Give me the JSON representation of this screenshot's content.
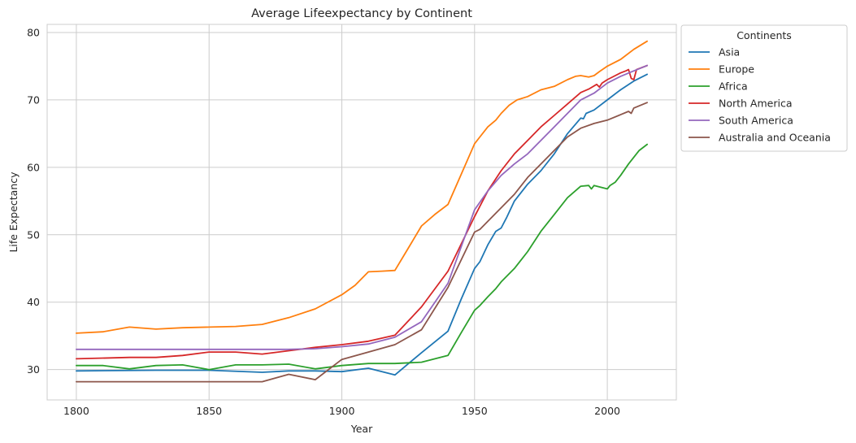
{
  "chart_data": {
    "type": "line",
    "title": "Average Lifeexpectancy by Continent",
    "xlabel": "Year",
    "ylabel": "Life Expectancy",
    "xlim": [
      1789,
      2026
    ],
    "ylim": [
      25.5,
      81.2
    ],
    "xticks": [
      1800,
      1850,
      1900,
      1950,
      2000
    ],
    "yticks": [
      30,
      40,
      50,
      60,
      70,
      80
    ],
    "grid": true,
    "legend": {
      "title": "Continents",
      "position": "outside-top-right"
    },
    "series": [
      {
        "name": "Asia",
        "color": "#1f77b4",
        "x": [
          1800,
          1830,
          1850,
          1870,
          1880,
          1890,
          1900,
          1910,
          1920,
          1930,
          1940,
          1945,
          1950,
          1952,
          1955,
          1958,
          1960,
          1962,
          1965,
          1970,
          1975,
          1980,
          1985,
          1990,
          1991,
          1992,
          1995,
          2000,
          2005,
          2010,
          2015
        ],
        "y": [
          29.8,
          29.9,
          29.9,
          29.6,
          29.8,
          29.8,
          29.7,
          30.2,
          29.2,
          32.5,
          35.7,
          40.5,
          45.0,
          46.0,
          48.5,
          50.5,
          51.0,
          52.5,
          55.0,
          57.5,
          59.5,
          62.0,
          65.0,
          67.3,
          67.2,
          68.0,
          68.5,
          70.0,
          71.5,
          72.8,
          73.8
        ]
      },
      {
        "name": "Europe",
        "color": "#ff7f0e",
        "x": [
          1800,
          1810,
          1820,
          1830,
          1840,
          1850,
          1860,
          1870,
          1880,
          1890,
          1900,
          1905,
          1910,
          1915,
          1920,
          1925,
          1930,
          1935,
          1940,
          1945,
          1950,
          1952,
          1955,
          1958,
          1960,
          1963,
          1966,
          1970,
          1975,
          1980,
          1985,
          1988,
          1990,
          1993,
          1995,
          1997,
          2000,
          2005,
          2010,
          2015
        ],
        "y": [
          35.4,
          35.6,
          36.3,
          36.0,
          36.2,
          36.3,
          36.4,
          36.7,
          37.7,
          39.0,
          41.1,
          42.5,
          44.5,
          44.6,
          44.7,
          48.0,
          51.3,
          53.0,
          54.5,
          59.0,
          63.5,
          64.5,
          66.0,
          67.0,
          68.0,
          69.2,
          70.0,
          70.5,
          71.5,
          72.0,
          73.0,
          73.5,
          73.6,
          73.4,
          73.6,
          74.2,
          75.0,
          76.0,
          77.5,
          78.7
        ]
      },
      {
        "name": "Africa",
        "color": "#2ca02c",
        "x": [
          1800,
          1810,
          1820,
          1830,
          1840,
          1850,
          1860,
          1870,
          1880,
          1890,
          1900,
          1910,
          1920,
          1930,
          1940,
          1945,
          1950,
          1952,
          1955,
          1958,
          1960,
          1965,
          1968,
          1970,
          1975,
          1980,
          1985,
          1990,
          1993,
          1994,
          1995,
          1998,
          2000,
          2001,
          2003,
          2005,
          2008,
          2010,
          2012,
          2015
        ],
        "y": [
          30.6,
          30.6,
          30.1,
          30.6,
          30.7,
          30.0,
          30.7,
          30.7,
          30.8,
          30.1,
          30.6,
          30.9,
          30.9,
          31.1,
          32.1,
          35.5,
          38.8,
          39.5,
          40.8,
          42.0,
          43.0,
          45.0,
          46.5,
          47.5,
          50.5,
          53.0,
          55.5,
          57.2,
          57.3,
          56.8,
          57.3,
          57.0,
          56.8,
          57.3,
          57.8,
          58.8,
          60.5,
          61.5,
          62.5,
          63.4
        ]
      },
      {
        "name": "North America",
        "color": "#d62728",
        "x": [
          1800,
          1820,
          1830,
          1840,
          1850,
          1860,
          1870,
          1880,
          1890,
          1900,
          1910,
          1920,
          1930,
          1940,
          1950,
          1955,
          1960,
          1965,
          1970,
          1975,
          1980,
          1985,
          1990,
          1993,
          1996,
          1997,
          1998,
          2000,
          2005,
          2007,
          2008,
          2009,
          2010,
          2011,
          2015
        ],
        "y": [
          31.6,
          31.8,
          31.8,
          32.1,
          32.6,
          32.6,
          32.3,
          32.8,
          33.3,
          33.7,
          34.2,
          35.1,
          39.3,
          44.6,
          52.7,
          56.5,
          59.5,
          62.0,
          64.0,
          66.0,
          67.7,
          69.4,
          71.1,
          71.6,
          72.3,
          71.9,
          72.5,
          73.0,
          74.0,
          74.3,
          74.5,
          73.2,
          73.0,
          74.5,
          75.1
        ]
      },
      {
        "name": "South America",
        "color": "#9467bd",
        "x": [
          1800,
          1850,
          1880,
          1890,
          1900,
          1910,
          1920,
          1930,
          1940,
          1950,
          1955,
          1960,
          1965,
          1970,
          1975,
          1980,
          1985,
          1990,
          1995,
          2000,
          2005,
          2010,
          2015
        ],
        "y": [
          33.0,
          33.0,
          33.0,
          33.1,
          33.4,
          33.8,
          34.8,
          37.1,
          42.8,
          53.7,
          56.5,
          58.8,
          60.5,
          62.0,
          64.0,
          66.0,
          68.0,
          70.0,
          71.0,
          72.5,
          73.5,
          74.3,
          75.1
        ]
      },
      {
        "name": "Australia and Oceania",
        "color": "#8c564b",
        "x": [
          1800,
          1870,
          1880,
          1890,
          1900,
          1910,
          1920,
          1930,
          1940,
          1950,
          1952,
          1955,
          1960,
          1965,
          1970,
          1975,
          1980,
          1985,
          1990,
          1995,
          2000,
          2005,
          2008,
          2009,
          2010,
          2015
        ],
        "y": [
          28.2,
          28.2,
          29.3,
          28.5,
          31.5,
          32.6,
          33.7,
          35.9,
          42.2,
          50.4,
          50.8,
          52.0,
          54.0,
          56.0,
          58.5,
          60.5,
          62.5,
          64.5,
          65.8,
          66.5,
          67.0,
          67.8,
          68.3,
          68.0,
          68.8,
          69.6
        ]
      }
    ]
  }
}
